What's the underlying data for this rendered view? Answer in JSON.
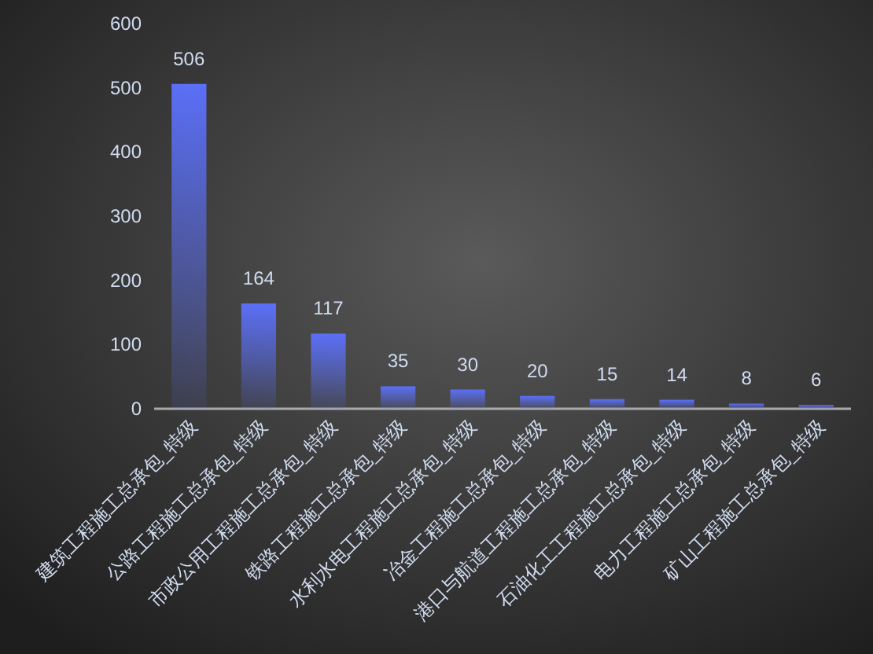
{
  "chart_data": {
    "type": "bar",
    "categories": [
      "建筑工程施工总承包_特级",
      "公路工程施工总承包_特级",
      "市政公用工程施工总承包_特级",
      "铁路工程施工总承包_特级",
      "水利水电工程施工总承包_特级",
      "冶金工程施工总承包_特级",
      "港口与航道工程施工总承包_特级",
      "石油化工工程施工总承包_特级",
      "电力工程施工总承包_特级",
      "矿山工程施工总承包_特级"
    ],
    "values": [
      506,
      164,
      117,
      35,
      30,
      20,
      15,
      14,
      8,
      6
    ],
    "color": "#5b6ff7",
    "ylim": [
      0,
      600
    ],
    "yticks": [
      0,
      100,
      200,
      300,
      400,
      500,
      600
    ],
    "data_labels": true,
    "grid": false
  }
}
